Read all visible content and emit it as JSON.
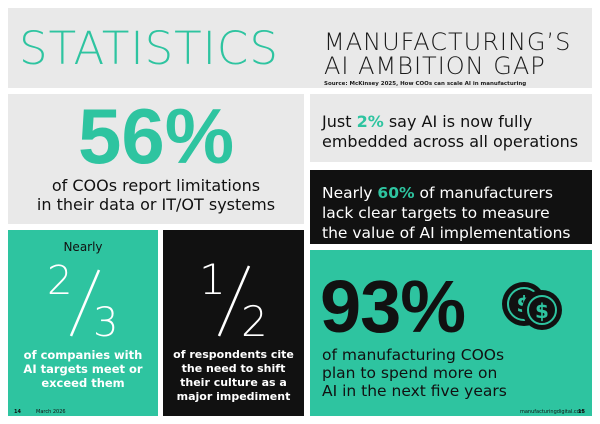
{
  "header": {
    "label": "STATISTICS",
    "title_line1": "MANUFACTURING’S",
    "title_line2": "AI AMBITION GAP",
    "source": "Source: McKinsey 2025, How COOs can scale AI in manufacturing"
  },
  "stats": {
    "coo_limits": {
      "value": "56%",
      "caption_line1": "of COOs report limitations",
      "caption_line2": "in their data or IT/OT systems"
    },
    "embedded": {
      "prefix": "Just ",
      "value": "2%",
      "suffix": " say AI is now fully",
      "line2": "embedded across all operations"
    },
    "targets": {
      "prefix": "Nearly ",
      "value": "60%",
      "suffix": " of manufacturers",
      "line2": "lack clear targets to measure",
      "line3": "the value of AI implementations"
    },
    "two_thirds": {
      "pre": "Nearly",
      "numerator": "2",
      "denominator": "3",
      "caption_line1": "of companies with",
      "caption_line2": "AI targets meet or",
      "caption_line3": "exceed them"
    },
    "half": {
      "numerator": "1",
      "denominator": "2",
      "caption_line1": "of respondents cite",
      "caption_line2": "the need to shift",
      "caption_line3": "their culture as a",
      "caption_line4": "major impediment"
    },
    "spend_more": {
      "value": "93%",
      "caption_line1": "of manufacturing COOs",
      "caption_line2": "plan to spend more on",
      "caption_line3": "AI in the next five years",
      "icon": "dollar-coins-icon"
    }
  },
  "footer": {
    "left_page": "14",
    "left_date": "March 2026",
    "right_site": "manufacturingdigital.com",
    "right_page": "15"
  },
  "colors": {
    "accent": "#2ec4a0",
    "dark": "#111111",
    "panel": "#e9e9e9"
  }
}
